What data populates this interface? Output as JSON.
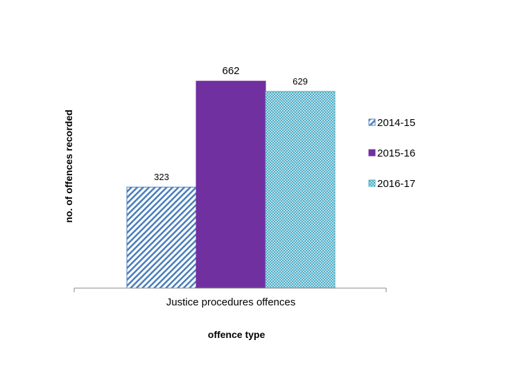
{
  "chart_data": {
    "type": "bar",
    "title": "",
    "xlabel": "offence type",
    "ylabel": "no. of offences recorded",
    "categories": [
      "Justice procedures offences"
    ],
    "series": [
      {
        "name": "2014-15",
        "values": [
          323
        ],
        "color": "#4a7ebb",
        "pattern": "diagonal-hatch"
      },
      {
        "name": "2015-16",
        "values": [
          662
        ],
        "color": "#7030a0",
        "pattern": "solid"
      },
      {
        "name": "2016-17",
        "values": [
          629
        ],
        "color": "#4bacc6",
        "pattern": "cross-hatch"
      }
    ],
    "ylim": [
      0,
      700
    ],
    "grid": false,
    "legend": "right",
    "data_labels": true
  }
}
